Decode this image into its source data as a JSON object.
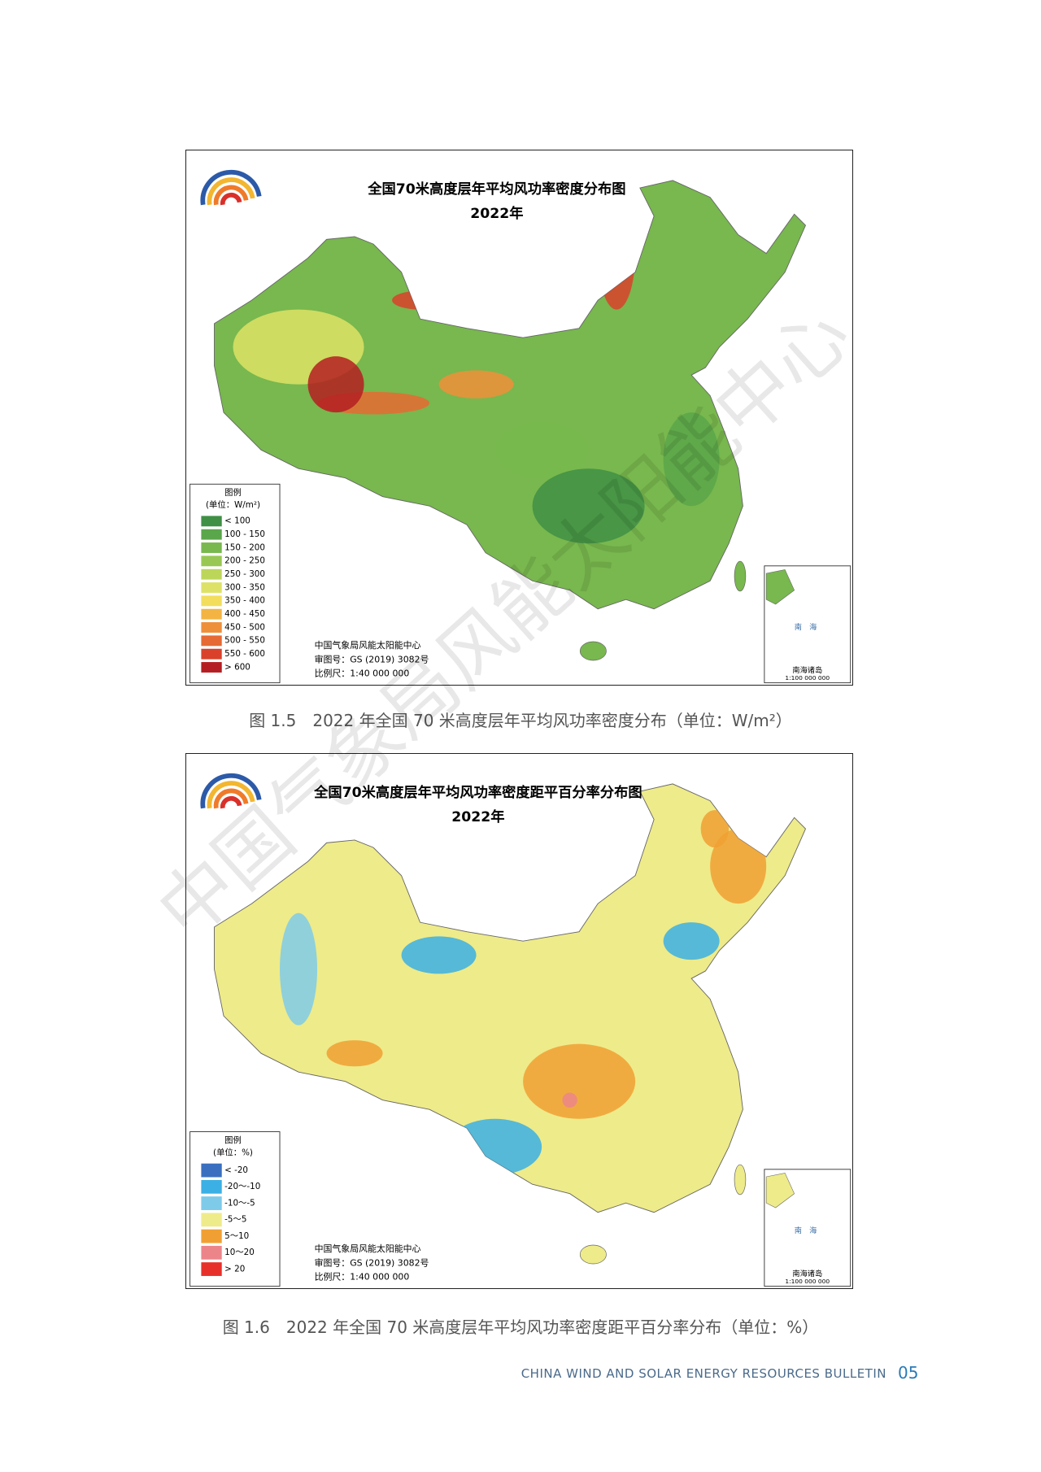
{
  "figures": [
    {
      "map_title": "全国70米高度层年平均风功率密度分布图",
      "map_year": "2022年",
      "legend": {
        "title": "图例",
        "unit": "(单位：W/m²)",
        "items": [
          {
            "label": "< 100",
            "color": "#3f8f45"
          },
          {
            "label": "100 - 150",
            "color": "#5aa64a"
          },
          {
            "label": "150 - 200",
            "color": "#78b84e"
          },
          {
            "label": "200 - 250",
            "color": "#98c853"
          },
          {
            "label": "250 - 300",
            "color": "#bcd65a"
          },
          {
            "label": "300 - 350",
            "color": "#dde266"
          },
          {
            "label": "350 - 400",
            "color": "#f2de5c"
          },
          {
            "label": "400 - 450",
            "color": "#f3b443"
          },
          {
            "label": "450 - 500",
            "color": "#ee8f3a"
          },
          {
            "label": "500 - 550",
            "color": "#e66a33"
          },
          {
            "label": "550 - 600",
            "color": "#d9412b"
          },
          {
            "label": "> 600",
            "color": "#b41e22"
          }
        ]
      },
      "credits": [
        "中国气象局风能太阳能中心",
        "审图号：GS (2019) 3082号",
        "比例尺：1:40 000 000"
      ],
      "inset": {
        "sea_label": "南　海",
        "islands": "南海诸岛",
        "scale": "1:100 000 000"
      },
      "caption": "图 1.5　2022 年全国 70 米高度层年平均风功率密度分布（单位：W/m²）"
    },
    {
      "map_title": "全国70米高度层年平均风功率密度距平百分率分布图",
      "map_year": "2022年",
      "legend": {
        "title": "图例",
        "unit": "(单位：%)",
        "items": [
          {
            "label": "< -20",
            "color": "#3a6fc0"
          },
          {
            "label": "-20～-10",
            "color": "#3bb0e4"
          },
          {
            "label": "-10～-5",
            "color": "#7ecbe9"
          },
          {
            "label": "-5～5",
            "color": "#eeeb8a"
          },
          {
            "label": "5～10",
            "color": "#f0a033"
          },
          {
            "label": "10～20",
            "color": "#ec8589"
          },
          {
            "label": "> 20",
            "color": "#e8302a"
          }
        ]
      },
      "credits": [
        "中国气象局风能太阳能中心",
        "审图号：GS (2019) 3082号",
        "比例尺：1:40 000 000"
      ],
      "inset": {
        "sea_label": "南　海",
        "islands": "南海诸岛",
        "scale": "1:100 000 000"
      },
      "caption": "图 1.6　2022 年全国 70 米高度层年平均风功率密度距平百分率分布（单位：%）"
    }
  ],
  "footer": {
    "text": "CHINA WIND AND SOLAR ENERGY RESOURCES BULLETIN",
    "page": "05"
  },
  "watermark": "中国气象局风能太阳能中心"
}
